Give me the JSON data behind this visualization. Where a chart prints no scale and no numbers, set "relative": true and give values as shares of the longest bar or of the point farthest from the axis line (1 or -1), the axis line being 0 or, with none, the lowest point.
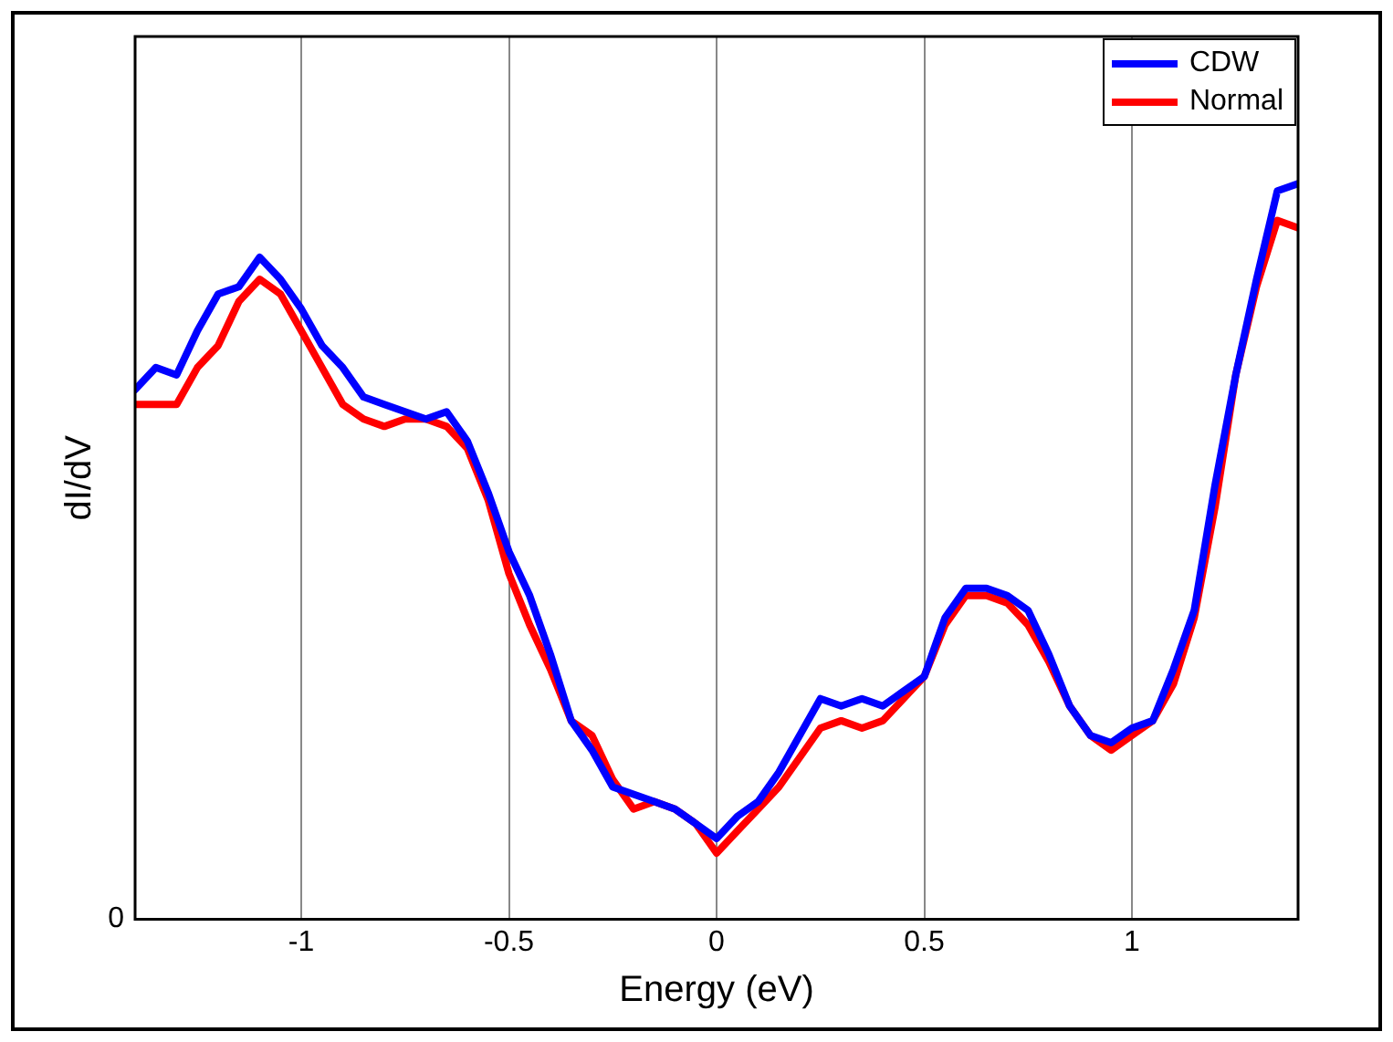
{
  "chart_data": {
    "type": "line",
    "xlabel": "Energy (eV)",
    "ylabel": "dI/dV",
    "relative": true,
    "xlim": [
      -1.4,
      1.4
    ],
    "xticks": [
      -1,
      -0.5,
      0,
      0.5,
      1
    ],
    "grid": "x",
    "legend": "top right",
    "marker": "none",
    "line_style": "solid",
    "annotations": [
      "0"
    ],
    "x": [
      -1.4,
      -1.35,
      -1.3,
      -1.25,
      -1.2,
      -1.15,
      -1.1,
      -1.05,
      -1.0,
      -0.95,
      -0.9,
      -0.85,
      -0.8,
      -0.75,
      -0.7,
      -0.65,
      -0.6,
      -0.55,
      -0.5,
      -0.45,
      -0.4,
      -0.35,
      -0.3,
      -0.25,
      -0.2,
      -0.15,
      -0.1,
      -0.05,
      0,
      0.05,
      0.1,
      0.15,
      0.2,
      0.25,
      0.3,
      0.35,
      0.4,
      0.45,
      0.5,
      0.55,
      0.6,
      0.65,
      0.7,
      0.75,
      0.8,
      0.85,
      0.9,
      0.95,
      1.0,
      1.05,
      1.1,
      1.15,
      1.2,
      1.25,
      1.3,
      1.35,
      1.4
    ],
    "series": [
      {
        "name": "CDW",
        "color": "#0000ff",
        "values": [
          0.72,
          0.75,
          0.74,
          0.8,
          0.85,
          0.86,
          0.9,
          0.87,
          0.83,
          0.78,
          0.75,
          0.71,
          0.7,
          0.69,
          0.68,
          0.69,
          0.65,
          0.58,
          0.5,
          0.44,
          0.36,
          0.27,
          0.23,
          0.18,
          0.17,
          0.16,
          0.15,
          0.13,
          0.11,
          0.14,
          0.16,
          0.2,
          0.25,
          0.3,
          0.29,
          0.3,
          0.29,
          0.31,
          0.33,
          0.41,
          0.45,
          0.45,
          0.44,
          0.42,
          0.36,
          0.29,
          0.25,
          0.24,
          0.26,
          0.27,
          0.34,
          0.42,
          0.59,
          0.74,
          0.87,
          0.99,
          1.0
        ]
      },
      {
        "name": "Normal",
        "color": "#ff0000",
        "values": [
          0.7,
          0.7,
          0.7,
          0.75,
          0.78,
          0.84,
          0.87,
          0.85,
          0.8,
          0.75,
          0.7,
          0.68,
          0.67,
          0.68,
          0.68,
          0.67,
          0.64,
          0.57,
          0.47,
          0.4,
          0.34,
          0.27,
          0.25,
          0.19,
          0.15,
          0.16,
          0.15,
          0.13,
          0.09,
          0.12,
          0.15,
          0.18,
          0.22,
          0.26,
          0.27,
          0.26,
          0.27,
          0.3,
          0.33,
          0.4,
          0.44,
          0.44,
          0.43,
          0.4,
          0.35,
          0.29,
          0.25,
          0.23,
          0.25,
          0.27,
          0.32,
          0.41,
          0.56,
          0.74,
          0.86,
          0.95,
          0.94
        ]
      }
    ]
  }
}
